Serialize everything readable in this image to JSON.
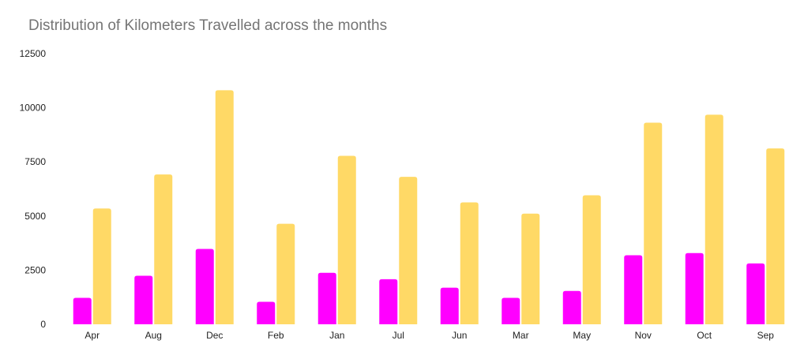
{
  "chart_data": {
    "type": "bar",
    "title": "Distribution of Kilometers Travelled across the months",
    "xlabel": "",
    "ylabel": "",
    "categories": [
      "Apr",
      "Aug",
      "Dec",
      "Feb",
      "Jan",
      "Jul",
      "Jun",
      "Mar",
      "May",
      "Nov",
      "Oct",
      "Sep"
    ],
    "series": [
      {
        "color": "#ff00ff",
        "values": [
          1220,
          2240,
          3480,
          1040,
          2380,
          2080,
          1690,
          1220,
          1540,
          3190,
          3290,
          2810
        ]
      },
      {
        "color": "#ffd966",
        "values": [
          5350,
          6920,
          10810,
          4640,
          7780,
          6810,
          5630,
          5110,
          5960,
          9310,
          9680,
          8120
        ]
      }
    ],
    "ylim": [
      0,
      12500
    ],
    "yticks": [
      0,
      2500,
      5000,
      7500,
      10000,
      12500
    ],
    "grid": false,
    "legend": "none"
  }
}
